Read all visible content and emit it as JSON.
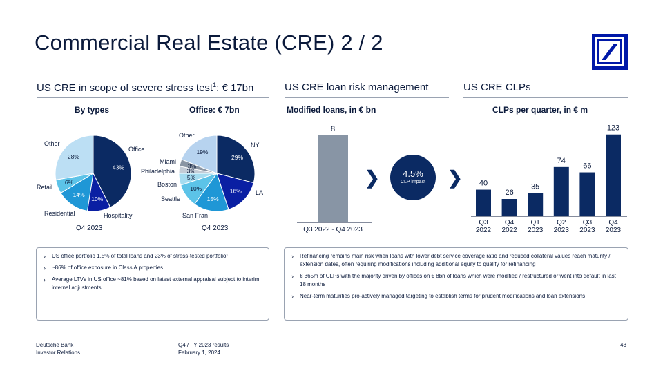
{
  "title": "Commercial Real Estate (CRE) 2 / 2",
  "sections": {
    "stress_test": {
      "text": "US CRE in scope of severe stress test",
      "sup": "1",
      "suffix": ": € 17bn"
    },
    "risk_mgmt": "US CRE loan risk management",
    "clps": "US CRE CLPs"
  },
  "subheads": {
    "by_types": "By types",
    "office": "Office: € 7bn",
    "modified": "Modified loans, in € bn",
    "clps_quarter": "CLPs per quarter, in € m"
  },
  "pie_period": "Q4 2023",
  "colors": {
    "navy": "#0b2a63",
    "brand": "#0018a8",
    "grey_bar": "#8895a5"
  },
  "chart_data": [
    {
      "type": "pie",
      "title": "By types",
      "caption": "Q4 2023",
      "slices": [
        {
          "label": "Office",
          "value": 43,
          "display": "43%",
          "color": "#0b2a63"
        },
        {
          "label": "Hospitality",
          "value": 10,
          "display": "10%",
          "color": "#0a1fa3"
        },
        {
          "label": "Residential",
          "value": 14,
          "display": "14%",
          "color": "#1f97d6"
        },
        {
          "label": "Retail",
          "value": 6,
          "display": "6%",
          "color": "#5cc3e8"
        },
        {
          "label": "Other",
          "value": 28,
          "display": "28%",
          "color": "#bcdff4"
        }
      ]
    },
    {
      "type": "pie",
      "title": "Office: € 7bn",
      "caption": "Q4 2023",
      "slices": [
        {
          "label": "NY",
          "value": 29,
          "display": "29%",
          "color": "#0b2a63"
        },
        {
          "label": "LA",
          "value": 16,
          "display": "16%",
          "color": "#0a1fa3"
        },
        {
          "label": "San Fran",
          "value": 15,
          "display": "15%",
          "color": "#1f97d6"
        },
        {
          "label": "Seattle",
          "value": 10,
          "display": "10%",
          "color": "#5cc3e8"
        },
        {
          "label": "Boston",
          "value": 5,
          "display": "5%",
          "color": "#a5dcf0"
        },
        {
          "label": "Philadelphia",
          "value": 3,
          "display": "3%",
          "color": "#c4ccd6"
        },
        {
          "label": "Miami",
          "value": 3,
          "display": "3%",
          "color": "#8a95a3"
        },
        {
          "label": "Other",
          "value": 19,
          "display": "19%",
          "color": "#b7d3ef"
        }
      ]
    },
    {
      "type": "bar",
      "title": "Modified loans, in € bn",
      "categories": [
        "Q3 2022 - Q4 2023"
      ],
      "values": [
        8
      ],
      "ylim": [
        0,
        9
      ]
    },
    {
      "type": "bar",
      "title": "CLPs per quarter, in € m",
      "categories": [
        "Q3 2022",
        "Q4 2022",
        "Q1 2023",
        "Q2 2023",
        "Q3 2023",
        "Q4 2023"
      ],
      "values": [
        40,
        26,
        35,
        74,
        66,
        123
      ],
      "ylim": [
        0,
        130
      ]
    }
  ],
  "clp_impact": {
    "value": "4.5%",
    "label": "CLP impact"
  },
  "left_bullets": [
    "US office portfolio 1.5% of total loans and 23% of stress-tested portfolio¹",
    "~86% of office exposure in Class A properties",
    "Average LTVs in US office ~81% based on latest external appraisal subject to interim internal adjustments"
  ],
  "right_bullets": [
    "Refinancing remains main risk when loans with lower debt service coverage ratio and reduced collateral values reach maturity / extension dates, often requiring modifications including additional equity to qualify for refinancing",
    "€ 365m of CLPs with the majority driven by offices on € 8bn of loans which were modified / restructured or went into default in last 18 months",
    "Near-term maturities pro-actively managed targeting to establish terms for prudent modifications and loan extensions"
  ],
  "footer": {
    "company": "Deutsche Bank",
    "dept": "Investor Relations",
    "report": "Q4 / FY 2023 results",
    "date": "February 1, 2024",
    "page": "43"
  }
}
